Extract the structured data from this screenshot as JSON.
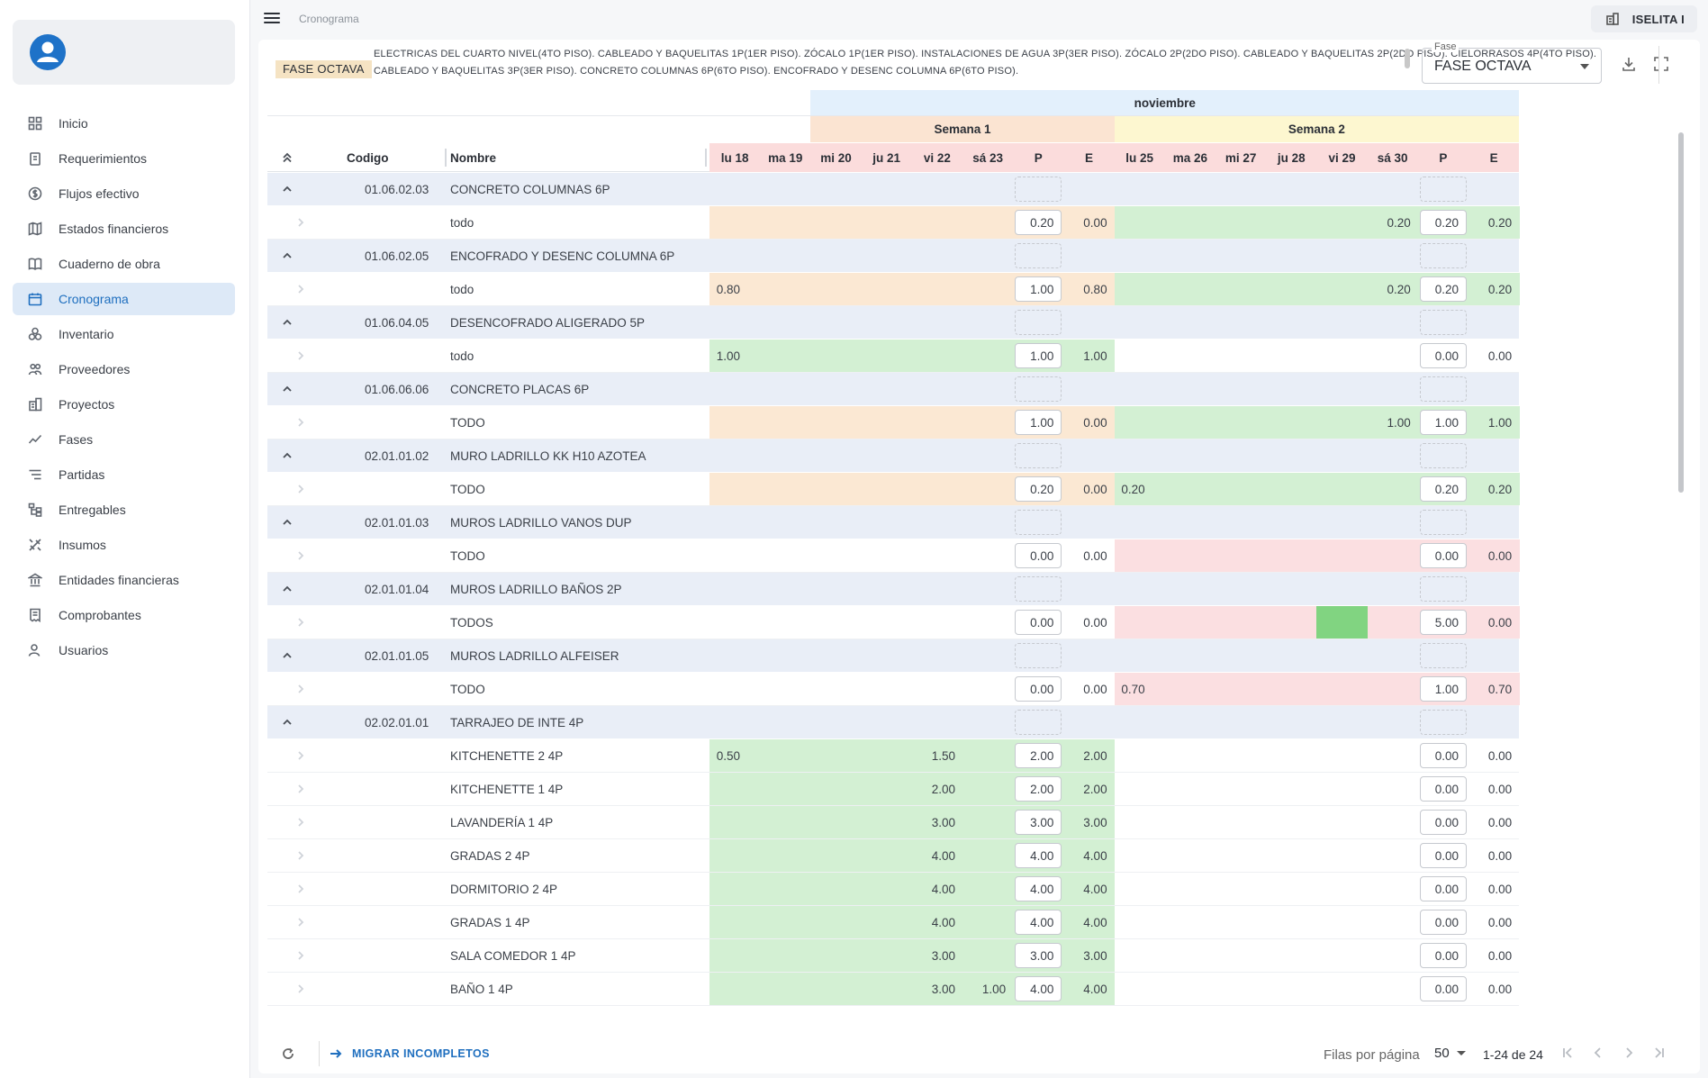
{
  "app": {
    "breadcrumb": "Cronograma",
    "user_name": "ISELITA I"
  },
  "colors": {
    "accent": "#1f6fbf",
    "month_bg": "#e3f0fc",
    "week1_bg": "#fbe4d2",
    "week2_bg": "#fdf7d0",
    "header_red": "#fbdcdc",
    "group_row": "#e9eef7",
    "orange": "#fbe8d3",
    "green": "#d3f0d3",
    "red": "#fbdfe1",
    "green_strong": "#81d481"
  },
  "sidebar": {
    "items": [
      {
        "label": "Inicio",
        "icon": "dashboard-icon"
      },
      {
        "label": "Requerimientos",
        "icon": "clipboard-icon"
      },
      {
        "label": "Flujos efectivo",
        "icon": "dollar-icon"
      },
      {
        "label": "Estados financieros",
        "icon": "map-icon"
      },
      {
        "label": "Cuaderno de obra",
        "icon": "book-icon"
      },
      {
        "label": "Cronograma",
        "icon": "calendar-icon",
        "active": true
      },
      {
        "label": "Inventario",
        "icon": "boxes-icon"
      },
      {
        "label": "Proveedores",
        "icon": "users-icon"
      },
      {
        "label": "Proyectos",
        "icon": "building-icon"
      },
      {
        "label": "Fases",
        "icon": "trend-icon"
      },
      {
        "label": "Partidas",
        "icon": "list-icon"
      },
      {
        "label": "Entregables",
        "icon": "hierarchy-icon"
      },
      {
        "label": "Insumos",
        "icon": "tools-icon"
      },
      {
        "label": "Entidades financieras",
        "icon": "bank-icon"
      },
      {
        "label": "Comprobantes",
        "icon": "receipt-icon"
      },
      {
        "label": "Usuarios",
        "icon": "user-icon"
      }
    ]
  },
  "phase": {
    "chip": "FASE OCTAVA",
    "description": "ELECTRICAS DEL CUARTO NIVEL(4TO PISO). CABLEADO Y BAQUELITAS 1P(1ER PISO). ZÓCALO 1P(1ER PISO). INSTALACIONES DE AGUA 3P(3ER PISO). ZÓCALO 2P(2DO PISO). CABLEADO Y BAQUELITAS 2P(2DO PISO). CIELORRASOS 4P(4TO PISO). CABLEADO Y BAQUELITAS 3P(3ER PISO). CONCRETO COLUMNAS 6P(6TO PISO). ENCOFRADO Y DESENC COLUMNA 6P(6TO PISO).",
    "select_label": "Fase",
    "select_value": "FASE OCTAVA"
  },
  "table": {
    "month": "noviembre",
    "weeks": [
      "Semana 1",
      "Semana 2"
    ],
    "col_codigo": "Codigo",
    "col_nombre": "Nombre",
    "days": [
      "lu 18",
      "ma 19",
      "mi 20",
      "ju 21",
      "vi 22",
      "sá 23",
      "P",
      "E",
      "lu 25",
      "ma 26",
      "mi 27",
      "ju 28",
      "vi 29",
      "sá 30",
      "P",
      "E"
    ],
    "rows": [
      {
        "type": "group",
        "code": "01.06.02.03",
        "name": "CONCRETO COLUMNAS 6P"
      },
      {
        "type": "item",
        "name": "todo",
        "values": [
          "",
          "",
          "",
          "",
          "",
          "",
          "0.20",
          "0.00",
          "",
          "",
          "",
          "",
          "",
          "0.20",
          "0.20",
          "0.20"
        ],
        "colors": [
          "o",
          "o",
          "o",
          "o",
          "o",
          "o",
          "o",
          "o",
          "g",
          "g",
          "g",
          "g",
          "g",
          "g",
          "g",
          "g"
        ]
      },
      {
        "type": "group",
        "code": "01.06.02.05",
        "name": "ENCOFRADO Y DESENC COLUMNA 6P"
      },
      {
        "type": "item",
        "name": "todo",
        "values": [
          "0.80",
          "",
          "",
          "",
          "",
          "",
          "1.00",
          "0.80",
          "",
          "",
          "",
          "",
          "",
          "0.20",
          "0.20",
          "0.20"
        ],
        "colors": [
          "o",
          "o",
          "o",
          "o",
          "o",
          "o",
          "o",
          "o",
          "g",
          "g",
          "g",
          "g",
          "g",
          "g",
          "g",
          "g"
        ]
      },
      {
        "type": "group",
        "code": "01.06.04.05",
        "name": "DESENCOFRADO ALIGERADO 5P"
      },
      {
        "type": "item",
        "name": "todo",
        "values": [
          "1.00",
          "",
          "",
          "",
          "",
          "",
          "1.00",
          "1.00",
          "",
          "",
          "",
          "",
          "",
          "",
          "0.00",
          "0.00"
        ],
        "colors": [
          "g",
          "g",
          "g",
          "g",
          "g",
          "g",
          "g",
          "g",
          "w",
          "w",
          "w",
          "w",
          "w",
          "w",
          "w",
          "w"
        ]
      },
      {
        "type": "group",
        "code": "01.06.06.06",
        "name": "CONCRETO PLACAS 6P"
      },
      {
        "type": "item",
        "name": "TODO",
        "values": [
          "",
          "",
          "",
          "",
          "",
          "",
          "1.00",
          "0.00",
          "",
          "",
          "",
          "",
          "",
          "1.00",
          "1.00",
          "1.00"
        ],
        "colors": [
          "o",
          "o",
          "o",
          "o",
          "o",
          "o",
          "o",
          "o",
          "g",
          "g",
          "g",
          "g",
          "g",
          "g",
          "g",
          "g"
        ]
      },
      {
        "type": "group",
        "code": "02.01.01.02",
        "name": "MURO LADRILLO KK H10 AZOTEA"
      },
      {
        "type": "item",
        "name": "TODO",
        "values": [
          "",
          "",
          "",
          "",
          "",
          "",
          "0.20",
          "0.00",
          "0.20",
          "",
          "",
          "",
          "",
          "",
          "0.20",
          "0.20"
        ],
        "colors": [
          "o",
          "o",
          "o",
          "o",
          "o",
          "o",
          "o",
          "o",
          "g",
          "g",
          "g",
          "g",
          "g",
          "g",
          "g",
          "g"
        ]
      },
      {
        "type": "group",
        "code": "02.01.01.03",
        "name": "MUROS LADRILLO VANOS DUP"
      },
      {
        "type": "item",
        "name": "TODO",
        "values": [
          "",
          "",
          "",
          "",
          "",
          "",
          "0.00",
          "0.00",
          "",
          "",
          "",
          "",
          "",
          "",
          "0.00",
          "0.00"
        ],
        "colors": [
          "w",
          "w",
          "w",
          "w",
          "w",
          "w",
          "w",
          "w",
          "r",
          "r",
          "r",
          "r",
          "r",
          "r",
          "r",
          "r"
        ]
      },
      {
        "type": "group",
        "code": "02.01.01.04",
        "name": "MUROS LADRILLO BAÑOS 2P"
      },
      {
        "type": "item",
        "name": "TODOS",
        "values": [
          "",
          "",
          "",
          "",
          "",
          "",
          "0.00",
          "0.00",
          "",
          "",
          "",
          "",
          "",
          "",
          "5.00",
          "0.00"
        ],
        "colors": [
          "w",
          "w",
          "w",
          "w",
          "w",
          "w",
          "w",
          "w",
          "r",
          "r",
          "r",
          "r",
          "G",
          "r",
          "r",
          "r"
        ]
      },
      {
        "type": "group",
        "code": "02.01.01.05",
        "name": "MUROS LADRILLO ALFEISER"
      },
      {
        "type": "item",
        "name": "TODO",
        "values": [
          "",
          "",
          "",
          "",
          "",
          "",
          "0.00",
          "0.00",
          "0.70",
          "",
          "",
          "",
          "",
          "",
          "1.00",
          "0.70"
        ],
        "colors": [
          "w",
          "w",
          "w",
          "w",
          "w",
          "w",
          "w",
          "w",
          "r",
          "r",
          "r",
          "r",
          "r",
          "r",
          "r",
          "r"
        ]
      },
      {
        "type": "group",
        "code": "02.02.01.01",
        "name": "TARRAJEO DE INTE 4P"
      },
      {
        "type": "item",
        "name": "KITCHENETTE 2 4P",
        "values": [
          "0.50",
          "",
          "",
          "",
          "1.50",
          "",
          "2.00",
          "2.00",
          "",
          "",
          "",
          "",
          "",
          "",
          "0.00",
          "0.00"
        ],
        "colors": [
          "g",
          "g",
          "g",
          "g",
          "g",
          "g",
          "g",
          "g",
          "w",
          "w",
          "w",
          "w",
          "w",
          "w",
          "w",
          "w"
        ]
      },
      {
        "type": "item",
        "name": "KITCHENETTE 1 4P",
        "values": [
          "",
          "",
          "",
          "",
          "2.00",
          "",
          "2.00",
          "2.00",
          "",
          "",
          "",
          "",
          "",
          "",
          "0.00",
          "0.00"
        ],
        "colors": [
          "g",
          "g",
          "g",
          "g",
          "g",
          "g",
          "g",
          "g",
          "w",
          "w",
          "w",
          "w",
          "w",
          "w",
          "w",
          "w"
        ]
      },
      {
        "type": "item",
        "name": "LAVANDERÍA 1 4P",
        "values": [
          "",
          "",
          "",
          "",
          "3.00",
          "",
          "3.00",
          "3.00",
          "",
          "",
          "",
          "",
          "",
          "",
          "0.00",
          "0.00"
        ],
        "colors": [
          "g",
          "g",
          "g",
          "g",
          "g",
          "g",
          "g",
          "g",
          "w",
          "w",
          "w",
          "w",
          "w",
          "w",
          "w",
          "w"
        ]
      },
      {
        "type": "item",
        "name": "GRADAS 2 4P",
        "values": [
          "",
          "",
          "",
          "",
          "4.00",
          "",
          "4.00",
          "4.00",
          "",
          "",
          "",
          "",
          "",
          "",
          "0.00",
          "0.00"
        ],
        "colors": [
          "g",
          "g",
          "g",
          "g",
          "g",
          "g",
          "g",
          "g",
          "w",
          "w",
          "w",
          "w",
          "w",
          "w",
          "w",
          "w"
        ]
      },
      {
        "type": "item",
        "name": "DORMITORIO 2 4P",
        "values": [
          "",
          "",
          "",
          "",
          "4.00",
          "",
          "4.00",
          "4.00",
          "",
          "",
          "",
          "",
          "",
          "",
          "0.00",
          "0.00"
        ],
        "colors": [
          "g",
          "g",
          "g",
          "g",
          "g",
          "g",
          "g",
          "g",
          "w",
          "w",
          "w",
          "w",
          "w",
          "w",
          "w",
          "w"
        ]
      },
      {
        "type": "item",
        "name": "GRADAS 1 4P",
        "values": [
          "",
          "",
          "",
          "",
          "4.00",
          "",
          "4.00",
          "4.00",
          "",
          "",
          "",
          "",
          "",
          "",
          "0.00",
          "0.00"
        ],
        "colors": [
          "g",
          "g",
          "g",
          "g",
          "g",
          "g",
          "g",
          "g",
          "w",
          "w",
          "w",
          "w",
          "w",
          "w",
          "w",
          "w"
        ]
      },
      {
        "type": "item",
        "name": "SALA COMEDOR 1 4P",
        "values": [
          "",
          "",
          "",
          "",
          "3.00",
          "",
          "3.00",
          "3.00",
          "",
          "",
          "",
          "",
          "",
          "",
          "0.00",
          "0.00"
        ],
        "colors": [
          "g",
          "g",
          "g",
          "g",
          "g",
          "g",
          "g",
          "g",
          "w",
          "w",
          "w",
          "w",
          "w",
          "w",
          "w",
          "w"
        ]
      },
      {
        "type": "item",
        "name": "BAÑO 1 4P",
        "values": [
          "",
          "",
          "",
          "",
          "3.00",
          "1.00",
          "4.00",
          "4.00",
          "",
          "",
          "",
          "",
          "",
          "",
          "0.00",
          "0.00"
        ],
        "colors": [
          "g",
          "g",
          "g",
          "g",
          "g",
          "g",
          "g",
          "g",
          "w",
          "w",
          "w",
          "w",
          "w",
          "w",
          "w",
          "w"
        ]
      }
    ]
  },
  "footer": {
    "migrar": "MIGRAR INCOMPLETOS",
    "rows_label": "Filas por página",
    "rows_value": "50",
    "page_info": "1-24 de 24"
  }
}
